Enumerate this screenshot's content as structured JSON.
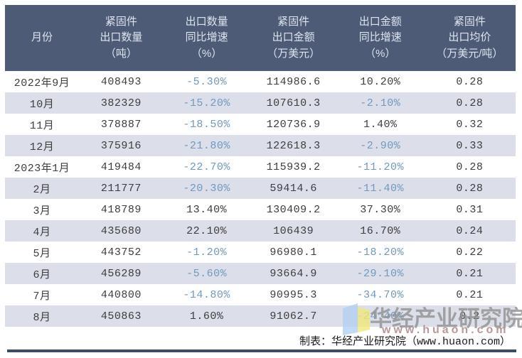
{
  "colors": {
    "page_bg": "#ffffff",
    "header_bg": "#4d5b77",
    "header_text": "#dde4ee",
    "row_alt_bg": "#dcdfe9",
    "text": "#3d3d3d",
    "negative_text": "#6e99c1",
    "bottom_bar": "#3e4b64",
    "watermark_gray": "#919191",
    "watermark_url": "#b09090",
    "logo_blue": "#b3d1f3",
    "logo_yellow": "#f2e87c"
  },
  "table": {
    "headers": [
      "月份",
      "紧固件\n出口数量\n（吨）",
      "出口数量\n同比增速\n（%）",
      "紧固件\n出口金额\n（万美元）",
      "出口金额\n同比增速\n（%）",
      "紧固件\n出口均价\n（万美元/吨）"
    ],
    "rows": [
      [
        "2022年9月",
        "408493",
        "-5.30%",
        "114986.6",
        "10.20%",
        "0.28"
      ],
      [
        "10月",
        "382329",
        "-15.20%",
        "107610.3",
        "-2.10%",
        "0.28"
      ],
      [
        "11月",
        "378887",
        "-18.50%",
        "120736.9",
        "1.40%",
        "0.32"
      ],
      [
        "12月",
        "375916",
        "-21.80%",
        "122618.3",
        "-2.90%",
        "0.33"
      ],
      [
        "2023年1月",
        "419484",
        "-22.70%",
        "115939.2",
        "-11.20%",
        "0.28"
      ],
      [
        "2月",
        "211777",
        "-20.30%",
        "59414.6",
        "-11.40%",
        "0.28"
      ],
      [
        "3月",
        "418789",
        "13.40%",
        "130409.2",
        "37.30%",
        "0.31"
      ],
      [
        "4月",
        "435680",
        "22.10%",
        "106439",
        "16.70%",
        "0.24"
      ],
      [
        "5月",
        "443752",
        "-1.20%",
        "96980.1",
        "-18.20%",
        "0.22"
      ],
      [
        "6月",
        "456289",
        "-5.60%",
        "93664.9",
        "-29.10%",
        "0.21"
      ],
      [
        "7月",
        "440800",
        "-14.80%",
        "90995.3",
        "-34.70%",
        "0.21"
      ],
      [
        "8月",
        "450863",
        "1.60%",
        "91062.7",
        "-24.40%",
        "0.2"
      ]
    ]
  },
  "watermark": {
    "org": "华经产业研究院",
    "url": "www.huaon.com",
    "logo": "open-book-logo"
  },
  "footer": {
    "credit": "制表：华经产业研究院（www.huaon.com）"
  }
}
